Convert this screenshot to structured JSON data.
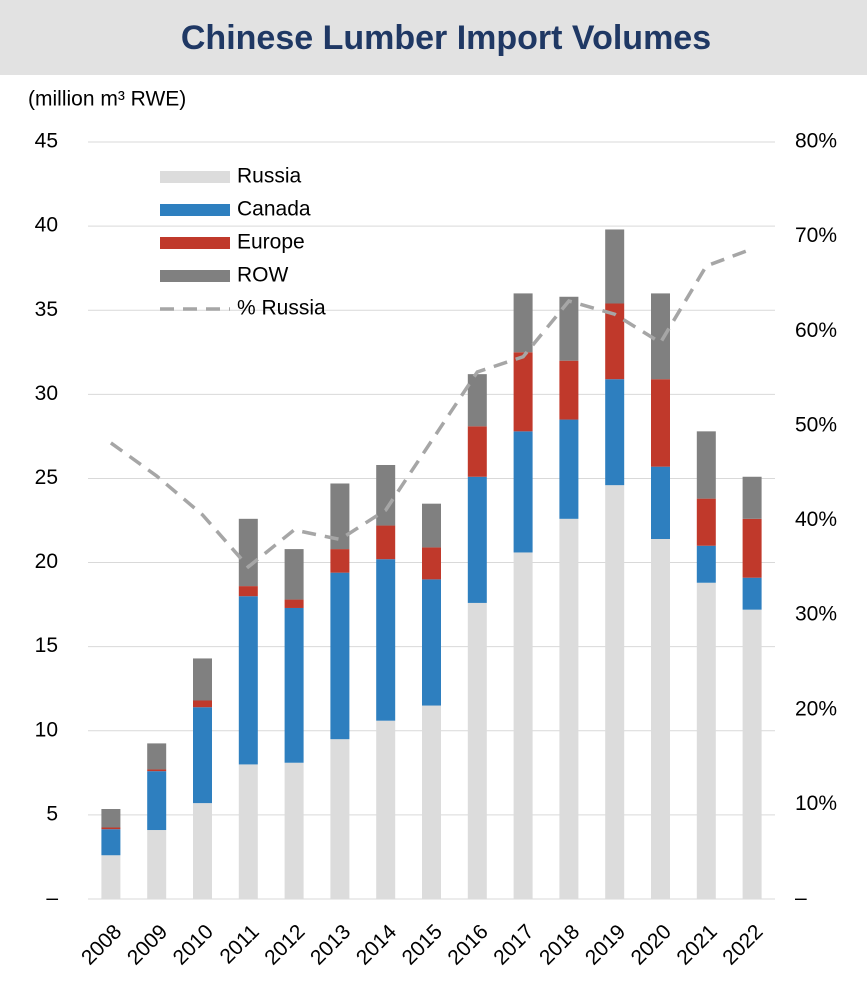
{
  "chart_data": {
    "type": "stacked-bar-line",
    "title": "Chinese Lumber Import Volumes",
    "y_label": "(million m³ RWE)",
    "categories": [
      "2008",
      "2009",
      "2010",
      "2011",
      "2012",
      "2013",
      "2014",
      "2015",
      "2016",
      "2017",
      "2018",
      "2019",
      "2020",
      "2021",
      "2022"
    ],
    "series": [
      {
        "name": "Russia",
        "color": "#dcdcdc",
        "type": "bar",
        "values": [
          2.6,
          4.1,
          5.7,
          8.0,
          8.1,
          9.5,
          10.6,
          11.5,
          17.6,
          20.6,
          22.6,
          24.6,
          21.4,
          18.8,
          17.2
        ]
      },
      {
        "name": "Canada",
        "color": "#2e7fbf",
        "type": "bar",
        "values": [
          1.55,
          3.5,
          5.7,
          10.0,
          9.2,
          9.9,
          9.6,
          7.5,
          7.5,
          7.2,
          5.9,
          6.3,
          4.3,
          2.2,
          1.9
        ]
      },
      {
        "name": "Europe",
        "color": "#c0392b",
        "type": "bar",
        "values": [
          0.1,
          0.1,
          0.4,
          0.6,
          0.5,
          1.4,
          2.0,
          1.9,
          3.0,
          4.7,
          3.5,
          4.5,
          5.2,
          2.8,
          3.5
        ]
      },
      {
        "name": "ROW",
        "color": "#808080",
        "type": "bar",
        "values": [
          1.1,
          1.55,
          2.5,
          4.0,
          3.0,
          3.9,
          3.6,
          2.6,
          3.1,
          3.5,
          3.8,
          4.4,
          5.1,
          4.0,
          2.5
        ]
      },
      {
        "name": "% Russia",
        "color": "#a6a6a6",
        "type": "line",
        "dashed": true,
        "axis": "y2",
        "values": [
          48.2,
          44.7,
          40.6,
          35.1,
          39.0,
          38.0,
          41.1,
          48.4,
          55.7,
          57.3,
          63.2,
          61.8,
          58.8,
          66.9,
          68.7
        ]
      }
    ],
    "ylim": [
      0,
      45
    ],
    "yticks": [
      {
        "value": 0,
        "label": "–"
      },
      5,
      10,
      15,
      20,
      25,
      30,
      35,
      40,
      45
    ],
    "y2lim": [
      0,
      80
    ],
    "y2ticks": [
      {
        "value": 0,
        "label": "–"
      },
      {
        "value": 10,
        "label": "10%"
      },
      {
        "value": 20,
        "label": "20%"
      },
      {
        "value": 30,
        "label": "30%"
      },
      {
        "value": 40,
        "label": "40%"
      },
      {
        "value": 50,
        "label": "50%"
      },
      {
        "value": 60,
        "label": "60%"
      },
      {
        "value": 70,
        "label": "70%"
      },
      {
        "value": 80,
        "label": "80%"
      }
    ],
    "grid": true,
    "legend": "top-left"
  }
}
